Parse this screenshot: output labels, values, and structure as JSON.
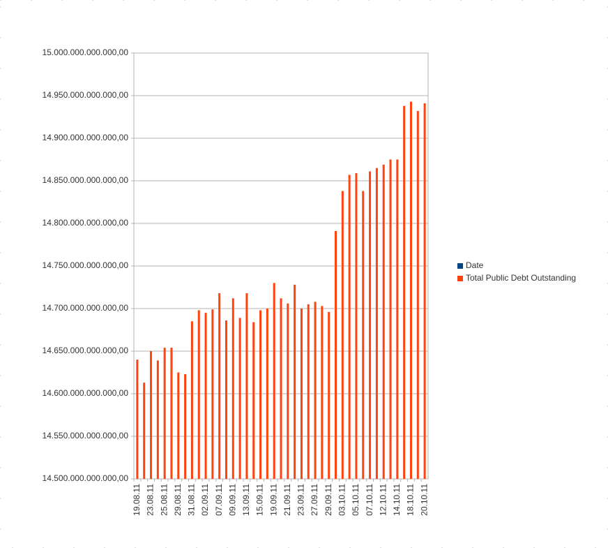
{
  "chart_data": {
    "type": "bar",
    "categories": [
      "19.08.11",
      null,
      "23.08.11",
      null,
      "25.08.11",
      null,
      "29.08.11",
      null,
      "31.08.11",
      null,
      "02.09.11",
      null,
      "07.09.11",
      null,
      "09.09.11",
      null,
      "13.09.11",
      null,
      "15.09.11",
      null,
      "19.09.11",
      null,
      "21.09.11",
      null,
      "23.09.11",
      null,
      "27.09.11",
      null,
      "29.09.11",
      null,
      "03.10.11",
      null,
      "05.10.11",
      null,
      "07.10.11",
      null,
      "12.10.11",
      null,
      "14.10.11",
      null,
      "18.10.11",
      null,
      "20.10.11"
    ],
    "series": [
      {
        "name": "Date",
        "color": "#004586",
        "values": [
          null,
          null,
          null,
          null,
          null,
          null,
          null,
          null,
          null,
          null,
          null,
          null,
          null,
          null,
          null,
          null,
          null,
          null,
          null,
          null,
          null,
          null,
          null,
          null,
          null,
          null,
          null,
          null,
          null,
          null,
          null,
          null,
          null,
          null,
          null,
          null,
          null,
          null,
          null,
          null,
          null,
          null,
          null
        ]
      },
      {
        "name": "Total Public Debt Outstanding",
        "color": "#ff420e",
        "values": [
          14640000000000,
          14613000000000,
          14650000000000,
          14639000000000,
          14654000000000,
          14654000000000,
          14625000000000,
          14623000000000,
          14685000000000,
          14698000000000,
          14695000000000,
          14699000000000,
          14718000000000,
          14686000000000,
          14712000000000,
          14689000000000,
          14718000000000,
          14684000000000,
          14698000000000,
          14700000000000,
          14730000000000,
          14712000000000,
          14706000000000,
          14728000000000,
          14700000000000,
          14705000000000,
          14708000000000,
          14703000000000,
          14696000000000,
          14791000000000,
          14838000000000,
          14857000000000,
          14859000000000,
          14838000000000,
          14861000000000,
          14865000000000,
          14869000000000,
          14875000000000,
          14875000000000,
          14938000000000,
          14943000000000,
          14932000000000,
          14941000000000
        ]
      }
    ],
    "ylim": [
      14500000000000,
      15000000000000
    ],
    "yticks": [
      {
        "value": 14500000000000,
        "label": "14.500.000.000.000,00"
      },
      {
        "value": 14550000000000,
        "label": "14.550.000.000.000,00"
      },
      {
        "value": 14600000000000,
        "label": "14.600.000.000.000,00"
      },
      {
        "value": 14650000000000,
        "label": "14.650.000.000.000,00"
      },
      {
        "value": 14700000000000,
        "label": "14.700.000.000.000,00"
      },
      {
        "value": 14750000000000,
        "label": "14.750.000.000.000,00"
      },
      {
        "value": 14800000000000,
        "label": "14.800.000.000.000,00"
      },
      {
        "value": 14850000000000,
        "label": "14.850.000.000.000,00"
      },
      {
        "value": 14900000000000,
        "label": "14.900.000.000.000,00"
      },
      {
        "value": 14950000000000,
        "label": "14.950.000.000.000,00"
      },
      {
        "value": 15000000000000,
        "label": "15.000.000.000.000,00"
      }
    ],
    "grid": true,
    "legend": "right"
  }
}
